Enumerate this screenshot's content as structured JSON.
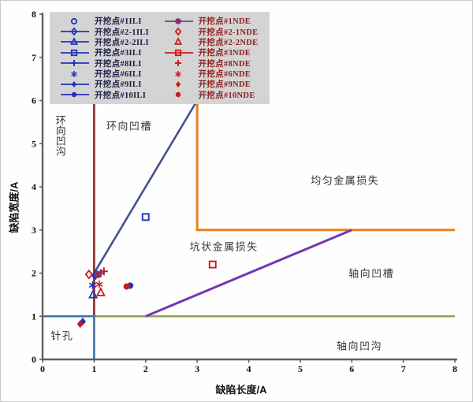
{
  "axes": {
    "x": {
      "title": "缺陷长度/A",
      "ticks": [
        0,
        1,
        2,
        3,
        4,
        5,
        6,
        7,
        8
      ]
    },
    "y": {
      "title": "缺陷宽度/A",
      "ticks": [
        0,
        1,
        2,
        3,
        4,
        5,
        6,
        7,
        8
      ]
    }
  },
  "legend": {
    "left_column": [
      "开挖点#1ILI",
      "开挖点#2-1ILI",
      "开挖点#2-2ILI",
      "开挖点#3ILI",
      "开挖点#8ILI",
      "开挖点#6ILI",
      "开挖点#9ILI",
      "开挖点#10ILI"
    ],
    "right_column": [
      "开挖点#1NDE",
      "开挖点#2-1NDE",
      "开挖点#2-2NDE",
      "开挖点#3NDE",
      "开挖点#8NDE",
      "开挖点#6NDE",
      "开挖点#9NDE",
      "开挖点#10NDE"
    ]
  },
  "chart_data": {
    "type": "scatter",
    "title": "",
    "xlabel": "缺陷长度/A",
    "ylabel": "缺陷宽度/A",
    "xlim": [
      0,
      8
    ],
    "ylim": [
      0,
      8
    ],
    "grid": false,
    "legend_position": "top-left-inside",
    "series": [
      {
        "name": "开挖点#1ILI",
        "marker": "open-circle",
        "color": "#2433b5",
        "legend_line": false,
        "points": [
          [
            1.05,
            1.97
          ]
        ]
      },
      {
        "name": "开挖点#2-1ILI",
        "marker": "open-diamond",
        "color": "#2433b5",
        "legend_line": true,
        "points": [
          [
            1.02,
            1.95
          ]
        ]
      },
      {
        "name": "开挖点#2-2ILI",
        "marker": "open-triangle",
        "color": "#2433b5",
        "legend_line": true,
        "points": [
          [
            0.98,
            1.5
          ]
        ]
      },
      {
        "name": "开挖点#3ILI",
        "marker": "open-square",
        "color": "#2433b5",
        "legend_line": true,
        "points": [
          [
            2.0,
            3.3
          ]
        ]
      },
      {
        "name": "开挖点#8ILI",
        "marker": "plus",
        "color": "#2433b5",
        "legend_line": true,
        "points": [
          [
            1.13,
            2.0
          ]
        ]
      },
      {
        "name": "开挖点#6ILI",
        "marker": "asterisk",
        "color": "#2433b5",
        "legend_line": false,
        "points": [
          [
            0.97,
            1.72
          ]
        ]
      },
      {
        "name": "开挖点#9ILI",
        "marker": "filled-diamond",
        "color": "#2433b5",
        "legend_line": true,
        "points": [
          [
            0.78,
            0.88
          ]
        ]
      },
      {
        "name": "开挖点#10ILI",
        "marker": "filled-circle",
        "color": "#2433b5",
        "legend_line": true,
        "points": [
          [
            1.7,
            1.71
          ]
        ]
      },
      {
        "name": "开挖点#1NDE",
        "marker": "filled-circle",
        "color": "#5d4b9b",
        "fill": "#a62836",
        "legend_line": true,
        "points": [
          [
            1.08,
            1.97
          ]
        ]
      },
      {
        "name": "开挖点#2-1NDE",
        "marker": "open-diamond",
        "color": "#cf1a1a",
        "legend_line": false,
        "points": [
          [
            0.9,
            1.97
          ]
        ]
      },
      {
        "name": "开挖点#2-2NDE",
        "marker": "open-triangle",
        "color": "#cf1a1a",
        "legend_line": false,
        "points": [
          [
            1.13,
            1.55
          ]
        ]
      },
      {
        "name": "开挖点#3NDE",
        "marker": "open-square",
        "color": "#cf1a1a",
        "legend_line": true,
        "points": [
          [
            3.3,
            2.2
          ]
        ]
      },
      {
        "name": "开挖点#8NDE",
        "marker": "plus",
        "color": "#cf1a1a",
        "legend_line": false,
        "points": [
          [
            1.19,
            2.04
          ]
        ]
      },
      {
        "name": "开挖点#6NDE",
        "marker": "asterisk",
        "color": "#cf1a1a",
        "legend_line": false,
        "points": [
          [
            1.1,
            1.74
          ]
        ]
      },
      {
        "name": "开挖点#9NDE",
        "marker": "filled-diamond",
        "color": "#cf1a1a",
        "legend_line": false,
        "points": [
          [
            0.73,
            0.82
          ]
        ]
      },
      {
        "name": "开挖点#10NDE",
        "marker": "filled-circle",
        "color": "#cf1a1a",
        "legend_line": false,
        "points": [
          [
            1.63,
            1.69
          ]
        ]
      }
    ],
    "boundary_lines": [
      {
        "name": "axial-gouge-boundary",
        "color": "#9aa24b",
        "width": 2.6,
        "points": [
          [
            1,
            1
          ],
          [
            8,
            1
          ]
        ]
      },
      {
        "name": "circumferential-gouge-boundary",
        "color": "#8e2a23",
        "width": 2.6,
        "points": [
          [
            1,
            1
          ],
          [
            1,
            6.08
          ]
        ]
      },
      {
        "name": "pinhole-box",
        "color": "#3a74a8",
        "width": 2.6,
        "points": [
          [
            0,
            1
          ],
          [
            1,
            1
          ],
          [
            1,
            0
          ]
        ]
      },
      {
        "name": "circumferential-slot-boundary",
        "color": "#44518f",
        "width": 2.6,
        "points": [
          [
            1,
            2
          ],
          [
            3,
            6
          ]
        ]
      },
      {
        "name": "uniform-metal-loss-boundary",
        "color": "#e8811c",
        "width": 3,
        "points": [
          [
            3,
            6
          ],
          [
            3,
            3
          ],
          [
            8,
            3
          ]
        ]
      },
      {
        "name": "axial-slot-boundary",
        "color": "#7434b8",
        "width": 3,
        "points": [
          [
            2,
            1
          ],
          [
            6,
            3
          ]
        ]
      }
    ],
    "region_labels": [
      {
        "text": "环向凹沟",
        "x": 0.34,
        "y": 5.18,
        "vertical": true
      },
      {
        "text": "环向凹槽",
        "x": 1.68,
        "y": 5.42,
        "vertical": false
      },
      {
        "text": "均匀金属损失",
        "x": 5.87,
        "y": 4.16,
        "vertical": false
      },
      {
        "text": "坑状金属损失",
        "x": 3.52,
        "y": 2.63,
        "vertical": false
      },
      {
        "text": "轴向凹槽",
        "x": 6.38,
        "y": 2.01,
        "vertical": false
      },
      {
        "text": "轴向凹沟",
        "x": 6.15,
        "y": 0.33,
        "vertical": false
      },
      {
        "text": "针孔",
        "x": 0.38,
        "y": 0.56,
        "vertical": false
      }
    ]
  },
  "colors": {
    "ili_blue": "#2433b5",
    "nde_red": "#cf1a1a",
    "legend_background": "#d4d4d4",
    "axis": "#5f5f5f"
  }
}
